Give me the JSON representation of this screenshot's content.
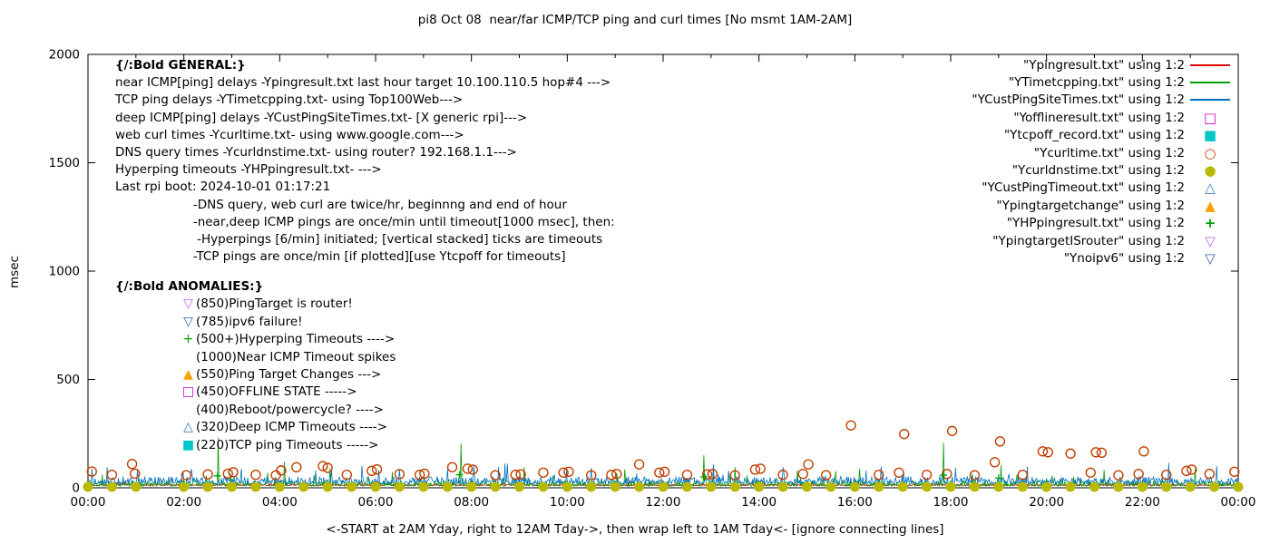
{
  "title": "pi8 Oct 08  near/far ICMP/TCP ping and curl times [No msmt 1AM-2AM]",
  "ylabel": "msec",
  "xlabel": "<-START at 2AM Yday, right to 12AM Tday->, then wrap left to 1AM Tday<- [ignore connecting lines]",
  "legend": {
    "entries": [
      {
        "label": "\"Ypingresult.txt\" using 1:2",
        "sample": "line",
        "color": "#dd0000"
      },
      {
        "label": "\"YTimetcpping.txt\" using 1:2",
        "sample": "line",
        "color": "#00a000"
      },
      {
        "label": "\"YCustPingSiteTimes.txt\" using 1:2",
        "sample": "line",
        "color": "#0070c0"
      },
      {
        "label": "\"Yofflineresult.txt\" using 1:2",
        "sample": "square-open",
        "color": "#cc00cc"
      },
      {
        "label": "\"Ytcpoff_record.txt\" using 1:2",
        "sample": "square-filled",
        "color": "#00c8c8"
      },
      {
        "label": "\"Ycurltime.txt\" using 1:2",
        "sample": "circle-open",
        "color": "#c04000"
      },
      {
        "label": "\"Ycurldnstime.txt\" using 1:2",
        "sample": "circle-filled",
        "color": "#b8ba00"
      },
      {
        "label": "\"YCustPingTimeout.txt\" using 1:2",
        "sample": "triangle-open",
        "color": "#3a7ab8"
      },
      {
        "label": "\"Ypingtargetchange\" using 1:2",
        "sample": "triangle-filled",
        "color": "#ffa000"
      },
      {
        "label": "\"YHPpingresult.txt\" using 1:2",
        "sample": "plus",
        "color": "#00a000"
      },
      {
        "label": "\"YpingtargetISrouter\" using 1:2",
        "sample": "nabla-open",
        "color": "#bb66ee"
      },
      {
        "label": "\"Ynoipv6\" using 1:2",
        "sample": "nabla-open",
        "color": "#3b5ea8"
      }
    ]
  },
  "annotations": {
    "general": [
      {
        "text": "{/:Bold GENERAL:}",
        "bold": true
      },
      {
        "text": "near ICMP[ping] delays -Ypingresult.txt last hour target 10.100.110.5 hop#4 --->"
      },
      {
        "text": "TCP ping delays -YTimetcpping.txt- using Top100Web--->"
      },
      {
        "text": "deep ICMP[ping] delays -YCustPingSiteTimes.txt- [X generic rpi]--->"
      },
      {
        "text": "web curl times -Ycurltime.txt- using www.google.com--->"
      },
      {
        "text": "DNS query times -Ycurldnstime.txt- using router? 192.168.1.1--->"
      },
      {
        "text": "Hyperping timeouts -YHPpingresult.txt- --->"
      },
      {
        "text": "Last rpi boot: 2024-10-01 01:17:21"
      },
      {
        "text": "                    -DNS query, web curl are twice/hr, beginnng and end of hour"
      },
      {
        "text": "                    -near,deep ICMP pings are once/min until timeout[1000 msec], then:"
      },
      {
        "text": "                     -Hyperpings [6/min] initiated; [vertical stacked] ticks are timeouts"
      },
      {
        "text": "                    -TCP pings are once/min [if plotted][use Ytcpoff for timeouts]"
      }
    ],
    "anomalies_header": "{/:Bold ANOMALIES:}",
    "anomalies": [
      {
        "marker": "▽",
        "color": "#bb66ee",
        "text": "(850)PingTarget is router!"
      },
      {
        "marker": "▽",
        "color": "#3b5ea8",
        "text": "(785)ipv6 failure!"
      },
      {
        "marker": "+",
        "color": "#00a000",
        "text": "(500+)Hyperping Timeouts ---->"
      },
      {
        "marker": "",
        "color": "",
        "text": "(1000)Near ICMP Timeout spikes"
      },
      {
        "marker": "▲",
        "color": "#ffa000",
        "text": "(550)Ping Target Changes --->"
      },
      {
        "marker": "□",
        "color": "#cc00cc",
        "text": "(450)OFFLINE STATE ----->"
      },
      {
        "marker": "",
        "color": "",
        "text": "(400)Reboot/powercycle? ---->"
      },
      {
        "marker": "△",
        "color": "#3a7ab8",
        "text": "(320)Deep ICMP Timeouts ---->"
      },
      {
        "marker": "■",
        "color": "#00c8c8",
        "text": "(220)TCP ping Timeouts ----->"
      }
    ]
  },
  "chart_data": {
    "type": "line",
    "title": "pi8 Oct 08  near/far ICMP/TCP ping and curl times [No msmt 1AM-2AM]",
    "xlabel": "<-START at 2AM Yday, right to 12AM Tday->, then wrap left to 1AM Tday<- [ignore connecting lines]",
    "ylabel": "msec",
    "xlim": [
      0,
      24
    ],
    "ylim": [
      0,
      2000
    ],
    "grid": false,
    "legend_position": "top-right",
    "xticks": [
      {
        "v": 0,
        "label": "00:00"
      },
      {
        "v": 2,
        "label": "02:00"
      },
      {
        "v": 4,
        "label": "04:00"
      },
      {
        "v": 6,
        "label": "06:00"
      },
      {
        "v": 8,
        "label": "08:00"
      },
      {
        "v": 10,
        "label": "10:00"
      },
      {
        "v": 12,
        "label": "12:00"
      },
      {
        "v": 14,
        "label": "14:00"
      },
      {
        "v": 16,
        "label": "16:00"
      },
      {
        "v": 18,
        "label": "18:00"
      },
      {
        "v": 20,
        "label": "20:00"
      },
      {
        "v": 22,
        "label": "22:00"
      },
      {
        "v": 24,
        "label": "00:00"
      }
    ],
    "yticks": [
      {
        "v": 0,
        "label": "0"
      },
      {
        "v": 500,
        "label": "500"
      },
      {
        "v": 1000,
        "label": "1000"
      },
      {
        "v": 1500,
        "label": "1500"
      },
      {
        "v": 2000,
        "label": "2000"
      }
    ],
    "line_series": [
      {
        "name": "Ypingresult.txt",
        "color": "#dd0000",
        "baseline": 10,
        "amp": 8,
        "seed": 7,
        "spikes": []
      },
      {
        "name": "YTimetcpping.txt",
        "color": "#00a000",
        "baseline": 8,
        "amp": 26,
        "seed": 13,
        "spikes": [
          [
            2.72,
            232
          ],
          [
            4.1,
            120
          ],
          [
            5.05,
            90
          ],
          [
            7.78,
            205
          ],
          [
            9.1,
            95
          ],
          [
            11.2,
            85
          ],
          [
            12.85,
            150
          ],
          [
            13.5,
            95
          ],
          [
            14.8,
            80
          ],
          [
            16.1,
            88
          ],
          [
            17.85,
            208
          ],
          [
            19.05,
            105
          ],
          [
            21.2,
            82
          ],
          [
            23.1,
            90
          ]
        ]
      },
      {
        "name": "YCustPingSiteTimes.txt",
        "color": "#0070c0",
        "baseline": 18,
        "amp": 34,
        "seed": 29,
        "spikes": [
          [
            0.4,
            95
          ],
          [
            3.2,
            88
          ],
          [
            6.5,
            82
          ],
          [
            8.05,
            100
          ],
          [
            10.5,
            92
          ],
          [
            13.05,
            108
          ],
          [
            14.5,
            95
          ],
          [
            16.55,
            98
          ],
          [
            18.1,
            92
          ],
          [
            19.6,
            98
          ],
          [
            22.55,
            115
          ],
          [
            23.55,
            100
          ]
        ]
      }
    ],
    "scatter_series": [
      {
        "name": "Ycurltime.txt",
        "marker": "circle-open",
        "color": "#c04000",
        "size": 5,
        "points": [
          [
            0.08,
            75
          ],
          [
            0.5,
            60
          ],
          [
            0.92,
            110
          ],
          [
            0.98,
            65
          ],
          [
            2.05,
            58
          ],
          [
            2.5,
            62
          ],
          [
            2.92,
            65
          ],
          [
            3.03,
            72
          ],
          [
            3.5,
            60
          ],
          [
            3.92,
            58
          ],
          [
            4.03,
            80
          ],
          [
            4.35,
            95
          ],
          [
            4.9,
            100
          ],
          [
            5.0,
            92
          ],
          [
            5.4,
            60
          ],
          [
            5.92,
            78
          ],
          [
            6.03,
            85
          ],
          [
            6.5,
            63
          ],
          [
            6.92,
            60
          ],
          [
            7.02,
            65
          ],
          [
            7.6,
            95
          ],
          [
            7.92,
            88
          ],
          [
            8.03,
            84
          ],
          [
            8.5,
            58
          ],
          [
            8.92,
            60
          ],
          [
            9.03,
            62
          ],
          [
            9.5,
            70
          ],
          [
            9.92,
            70
          ],
          [
            10.03,
            74
          ],
          [
            10.5,
            58
          ],
          [
            10.92,
            60
          ],
          [
            11.03,
            64
          ],
          [
            11.5,
            108
          ],
          [
            11.92,
            70
          ],
          [
            12.03,
            74
          ],
          [
            12.5,
            60
          ],
          [
            12.92,
            62
          ],
          [
            13.03,
            64
          ],
          [
            13.5,
            58
          ],
          [
            13.92,
            84
          ],
          [
            14.03,
            88
          ],
          [
            14.5,
            60
          ],
          [
            14.92,
            64
          ],
          [
            15.03,
            108
          ],
          [
            15.4,
            58
          ],
          [
            15.92,
            288
          ],
          [
            16.5,
            60
          ],
          [
            16.92,
            70
          ],
          [
            17.03,
            248
          ],
          [
            17.5,
            60
          ],
          [
            17.92,
            64
          ],
          [
            18.03,
            262
          ],
          [
            18.5,
            58
          ],
          [
            18.92,
            118
          ],
          [
            19.03,
            214
          ],
          [
            19.5,
            60
          ],
          [
            19.92,
            168
          ],
          [
            20.03,
            164
          ],
          [
            20.5,
            158
          ],
          [
            20.92,
            70
          ],
          [
            21.03,
            164
          ],
          [
            21.15,
            162
          ],
          [
            21.5,
            58
          ],
          [
            21.92,
            64
          ],
          [
            22.03,
            168
          ],
          [
            22.5,
            60
          ],
          [
            22.92,
            78
          ],
          [
            23.03,
            84
          ],
          [
            23.4,
            64
          ],
          [
            23.92,
            74
          ]
        ]
      },
      {
        "name": "Ycurldnstime.txt",
        "marker": "circle-filled",
        "color": "#b8ba00",
        "size": 5.5,
        "interval": 0.5,
        "y": 4,
        "skip": [
          1.01,
          1.99
        ]
      },
      {
        "name": "YHPpingresult.txt",
        "marker": "plus",
        "color": "#00a000",
        "size": 4,
        "points": [
          [
            2.7,
            55
          ],
          [
            7.75,
            60
          ],
          [
            12.85,
            50
          ],
          [
            17.85,
            58
          ],
          [
            19.0,
            45
          ]
        ]
      }
    ]
  }
}
